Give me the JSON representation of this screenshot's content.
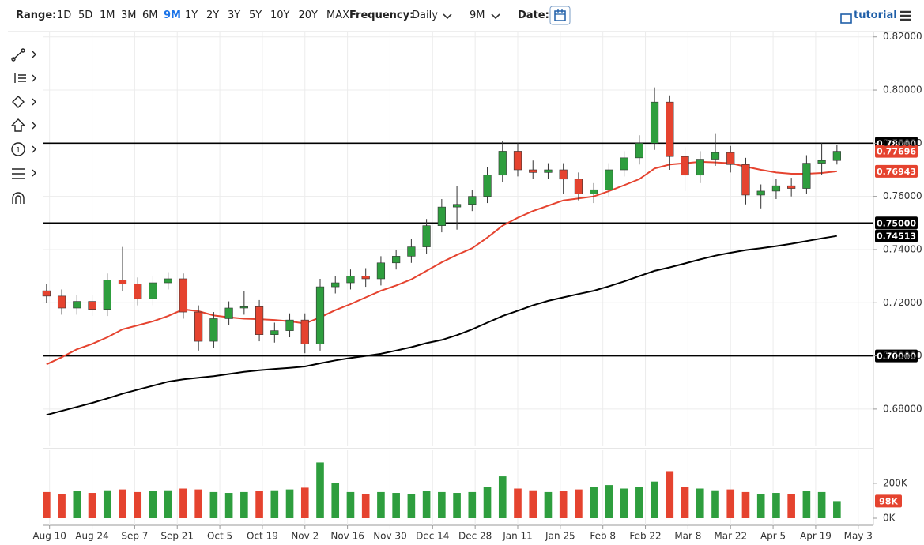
{
  "toolbar": {
    "range_label": "Range:",
    "ranges": [
      "1D",
      "5D",
      "1M",
      "3M",
      "6M",
      "9M",
      "1Y",
      "2Y",
      "3Y",
      "5Y",
      "10Y",
      "20Y",
      "MAX"
    ],
    "active_range": "9M",
    "frequency_label": "Frequency:",
    "frequency": "Daily",
    "period": "9M",
    "date_label": "Date:",
    "tutorial": "tutorial"
  },
  "chart_data": {
    "type": "candlestick",
    "x": [
      -1,
      4,
      9,
      14,
      19,
      24,
      29,
      34,
      39,
      44,
      49,
      54,
      59,
      64,
      69,
      74,
      79,
      84,
      89,
      94,
      99,
      104,
      109,
      114,
      119,
      124,
      129,
      134,
      139,
      144,
      149,
      154,
      159,
      164,
      169,
      174,
      179,
      184,
      189,
      194,
      199,
      204,
      209,
      214,
      219,
      224,
      229,
      234,
      239,
      244,
      249,
      254,
      259
    ],
    "xlim": [
      -2,
      271
    ],
    "xticks": [
      {
        "value": 0,
        "label": "Aug 10"
      },
      {
        "value": 14,
        "label": "Aug 24"
      },
      {
        "value": 28,
        "label": "Sep 7"
      },
      {
        "value": 42,
        "label": "Sep 21"
      },
      {
        "value": 56,
        "label": "Oct 5"
      },
      {
        "value": 70,
        "label": "Oct 19"
      },
      {
        "value": 84,
        "label": "Nov 2"
      },
      {
        "value": 98,
        "label": "Nov 16"
      },
      {
        "value": 112,
        "label": "Nov 30"
      },
      {
        "value": 126,
        "label": "Dec 14"
      },
      {
        "value": 140,
        "label": "Dec 28"
      },
      {
        "value": 154,
        "label": "Jan 11"
      },
      {
        "value": 168,
        "label": "Jan 25"
      },
      {
        "value": 182,
        "label": "Feb 8"
      },
      {
        "value": 196,
        "label": "Feb 22"
      },
      {
        "value": 210,
        "label": "Mar 8"
      },
      {
        "value": 224,
        "label": "Mar 22"
      },
      {
        "value": 238,
        "label": "Apr 5"
      },
      {
        "value": 252,
        "label": "Apr 19"
      },
      {
        "value": 266,
        "label": "May 3"
      }
    ],
    "open": [
      0.7245,
      0.7225,
      0.718,
      0.7205,
      0.7175,
      0.7285,
      0.727,
      0.7215,
      0.7275,
      0.729,
      0.7165,
      0.7055,
      0.714,
      0.718,
      0.7185,
      0.708,
      0.7095,
      0.7135,
      0.7045,
      0.726,
      0.7275,
      0.73,
      0.729,
      0.735,
      0.7375,
      0.741,
      0.749,
      0.756,
      0.757,
      0.76,
      0.768,
      0.777,
      0.77,
      0.769,
      0.77,
      0.7665,
      0.761,
      0.7625,
      0.77,
      0.7745,
      0.78,
      0.7955,
      0.775,
      0.768,
      0.774,
      0.7765,
      0.772,
      0.7605,
      0.762,
      0.764,
      0.763,
      0.7725,
      0.7735
    ],
    "high": [
      0.727,
      0.725,
      0.723,
      0.723,
      0.731,
      0.741,
      0.7295,
      0.73,
      0.7315,
      0.731,
      0.719,
      0.7165,
      0.7205,
      0.7245,
      0.721,
      0.7125,
      0.716,
      0.716,
      0.729,
      0.73,
      0.7325,
      0.733,
      0.7375,
      0.74,
      0.744,
      0.7515,
      0.759,
      0.764,
      0.7625,
      0.771,
      0.781,
      0.78,
      0.7735,
      0.7725,
      0.7725,
      0.769,
      0.765,
      0.7725,
      0.777,
      0.783,
      0.801,
      0.798,
      0.7785,
      0.777,
      0.7835,
      0.779,
      0.7745,
      0.7645,
      0.7665,
      0.767,
      0.7755,
      0.78,
      0.7795
    ],
    "low": [
      0.72,
      0.7155,
      0.7155,
      0.715,
      0.715,
      0.7245,
      0.719,
      0.719,
      0.725,
      0.714,
      0.702,
      0.703,
      0.7115,
      0.7155,
      0.7055,
      0.705,
      0.707,
      0.701,
      0.702,
      0.7235,
      0.725,
      0.726,
      0.7265,
      0.7325,
      0.735,
      0.7385,
      0.7465,
      0.7475,
      0.7545,
      0.7575,
      0.7655,
      0.7675,
      0.7665,
      0.7665,
      0.761,
      0.7585,
      0.7575,
      0.76,
      0.7675,
      0.772,
      0.7775,
      0.77,
      0.762,
      0.765,
      0.7715,
      0.769,
      0.757,
      0.7555,
      0.759,
      0.76,
      0.761,
      0.768,
      0.772
    ],
    "close": [
      0.7225,
      0.718,
      0.7205,
      0.7175,
      0.7285,
      0.727,
      0.7215,
      0.7275,
      0.729,
      0.7165,
      0.7055,
      0.714,
      0.718,
      0.7185,
      0.708,
      0.7095,
      0.7135,
      0.7045,
      0.726,
      0.7275,
      0.73,
      0.729,
      0.735,
      0.7375,
      0.741,
      0.749,
      0.756,
      0.757,
      0.76,
      0.768,
      0.777,
      0.77,
      0.769,
      0.77,
      0.7665,
      0.761,
      0.7625,
      0.77,
      0.7745,
      0.78,
      0.7955,
      0.775,
      0.768,
      0.774,
      0.7765,
      0.772,
      0.7605,
      0.762,
      0.764,
      0.763,
      0.7725,
      0.7735,
      0.77696
    ],
    "colors": {
      "up": "#2e9e3e",
      "down": "#e5432f"
    },
    "ylim": [
      0.666,
      0.822
    ],
    "yticks": [
      {
        "value": 0.68,
        "label": "0.68000"
      },
      {
        "value": 0.7,
        "label": "0.70000"
      },
      {
        "value": 0.72,
        "label": "0.72000"
      },
      {
        "value": 0.74,
        "label": "0.74000"
      },
      {
        "value": 0.76,
        "label": "0.76000"
      },
      {
        "value": 0.78,
        "label": "0.78000"
      },
      {
        "value": 0.8,
        "label": "0.80000"
      },
      {
        "value": 0.82,
        "label": "0.82000"
      }
    ],
    "grid": true,
    "levels": [
      {
        "value": 0.78,
        "label": "0.78000"
      },
      {
        "value": 0.75,
        "label": "0.75000"
      },
      {
        "value": 0.7,
        "label": "0.70000"
      }
    ],
    "moving_averages": [
      {
        "color": "#e5432f",
        "values": [
          0.6968,
          0.6995,
          0.7025,
          0.7045,
          0.707,
          0.71,
          0.7115,
          0.713,
          0.715,
          0.7175,
          0.7168,
          0.7152,
          0.7145,
          0.714,
          0.7138,
          0.7135,
          0.713,
          0.7122,
          0.7145,
          0.7172,
          0.7195,
          0.722,
          0.7245,
          0.7265,
          0.7288,
          0.732,
          0.7352,
          0.738,
          0.7405,
          0.7445,
          0.749,
          0.752,
          0.7545,
          0.7565,
          0.7585,
          0.7592,
          0.76,
          0.762,
          0.7642,
          0.7665,
          0.7705,
          0.772,
          0.7725,
          0.773,
          0.7728,
          0.7725,
          0.7712,
          0.77,
          0.769,
          0.7685,
          0.7685,
          0.7688,
          0.76943
        ]
      },
      {
        "color": "#000000",
        "values": [
          0.6778,
          0.6793,
          0.6808,
          0.6823,
          0.684,
          0.6858,
          0.6873,
          0.6888,
          0.6903,
          0.6912,
          0.6918,
          0.6924,
          0.6932,
          0.694,
          0.6946,
          0.6951,
          0.6955,
          0.696,
          0.6972,
          0.6983,
          0.6992,
          0.7,
          0.7008,
          0.702,
          0.7033,
          0.7048,
          0.706,
          0.7078,
          0.71,
          0.7125,
          0.715,
          0.717,
          0.719,
          0.7207,
          0.722,
          0.7233,
          0.7245,
          0.7262,
          0.728,
          0.73,
          0.732,
          0.7333,
          0.7348,
          0.7363,
          0.7377,
          0.7388,
          0.7398,
          0.7405,
          0.7413,
          0.7422,
          0.7432,
          0.7442,
          0.74513
        ]
      }
    ],
    "volume": {
      "values": [
        150000,
        140000,
        155000,
        145000,
        160000,
        165000,
        150000,
        155000,
        160000,
        170000,
        165000,
        150000,
        145000,
        150000,
        155000,
        160000,
        165000,
        175000,
        320000,
        200000,
        150000,
        140000,
        150000,
        145000,
        140000,
        155000,
        150000,
        145000,
        150000,
        180000,
        240000,
        170000,
        160000,
        150000,
        155000,
        165000,
        180000,
        190000,
        170000,
        180000,
        210000,
        270000,
        180000,
        170000,
        160000,
        165000,
        150000,
        140000,
        145000,
        140000,
        155000,
        150000,
        98000
      ],
      "value_labels": [
        null,
        null,
        null,
        null,
        null,
        null,
        null,
        null,
        null,
        null,
        null,
        null,
        null,
        null,
        null,
        null,
        null,
        null,
        null,
        null,
        null,
        null,
        null,
        null,
        null,
        null,
        null,
        null,
        null,
        null,
        null,
        null,
        null,
        null,
        null,
        null,
        null,
        null,
        null,
        null,
        null,
        null,
        null,
        null,
        null,
        null,
        null,
        null,
        null,
        null,
        null,
        null,
        "98K"
      ],
      "ylim": [
        0,
        390000
      ],
      "yticks": [
        {
          "value": 0,
          "label": "0K"
        },
        {
          "value": 200000,
          "label": "200K"
        }
      ]
    }
  }
}
